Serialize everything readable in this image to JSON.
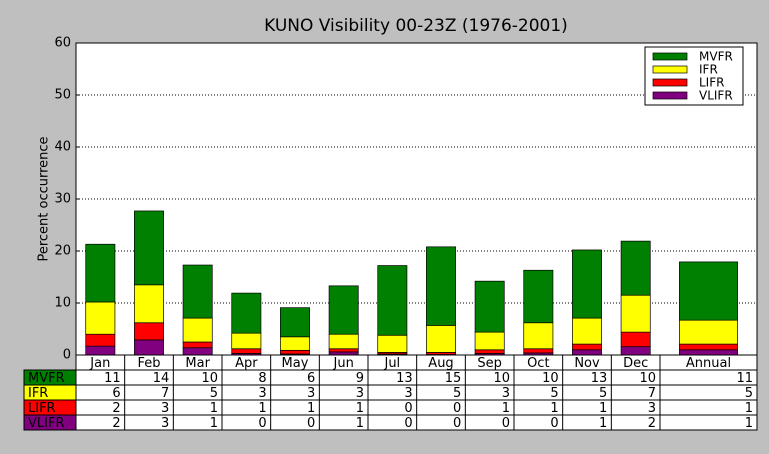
{
  "chart_data": {
    "type": "stacked-bar",
    "title": "KUNO Visibility 00-23Z (1976-2001)",
    "ylabel": "Percent occurrence",
    "categories": [
      "Jan",
      "Feb",
      "Mar",
      "Apr",
      "May",
      "Jun",
      "Jul",
      "Aug",
      "Sep",
      "Oct",
      "Nov",
      "Dec",
      "Annual"
    ],
    "series": [
      {
        "name": "MVFR",
        "color": "#008000",
        "values": [
          11.1,
          14.2,
          10.2,
          7.7,
          5.6,
          9.3,
          13.4,
          15.1,
          9.8,
          10.1,
          13.1,
          10.4,
          11.2
        ],
        "value_labels": [
          "11",
          "14",
          "10",
          "8",
          "6",
          "9",
          "13",
          "15",
          "10",
          "10",
          "13",
          "10",
          "11"
        ]
      },
      {
        "name": "IFR",
        "color": "#ffff00",
        "values": [
          6.2,
          7.3,
          4.6,
          3.0,
          2.6,
          2.8,
          3.3,
          5.2,
          3.4,
          5.0,
          5.0,
          7.1,
          4.6
        ],
        "value_labels": [
          "6",
          "7",
          "5",
          "3",
          "3",
          "3",
          "3",
          "5",
          "3",
          "5",
          "5",
          "7",
          "5"
        ]
      },
      {
        "name": "LIFR",
        "color": "#ff0000",
        "values": [
          2.3,
          3.3,
          1.1,
          0.9,
          0.7,
          0.6,
          0.3,
          0.4,
          0.7,
          0.8,
          1.1,
          2.8,
          1.1
        ],
        "value_labels": [
          "2",
          "3",
          "1",
          "1",
          "1",
          "1",
          "0",
          "0",
          "1",
          "1",
          "1",
          "3",
          "1"
        ]
      },
      {
        "name": "VLIFR",
        "color": "#800080",
        "values": [
          1.7,
          2.9,
          1.4,
          0.3,
          0.2,
          0.6,
          0.2,
          0.1,
          0.3,
          0.4,
          1.0,
          1.6,
          1.0
        ],
        "value_labels": [
          "2",
          "3",
          "1",
          "0",
          "0",
          "1",
          "0",
          "0",
          "0",
          "0",
          "1",
          "2",
          "1"
        ]
      }
    ],
    "ylim": [
      0,
      60
    ],
    "yticks": [
      0,
      10,
      20,
      30,
      40,
      50,
      60
    ],
    "grid": true,
    "legend": "upper right"
  }
}
